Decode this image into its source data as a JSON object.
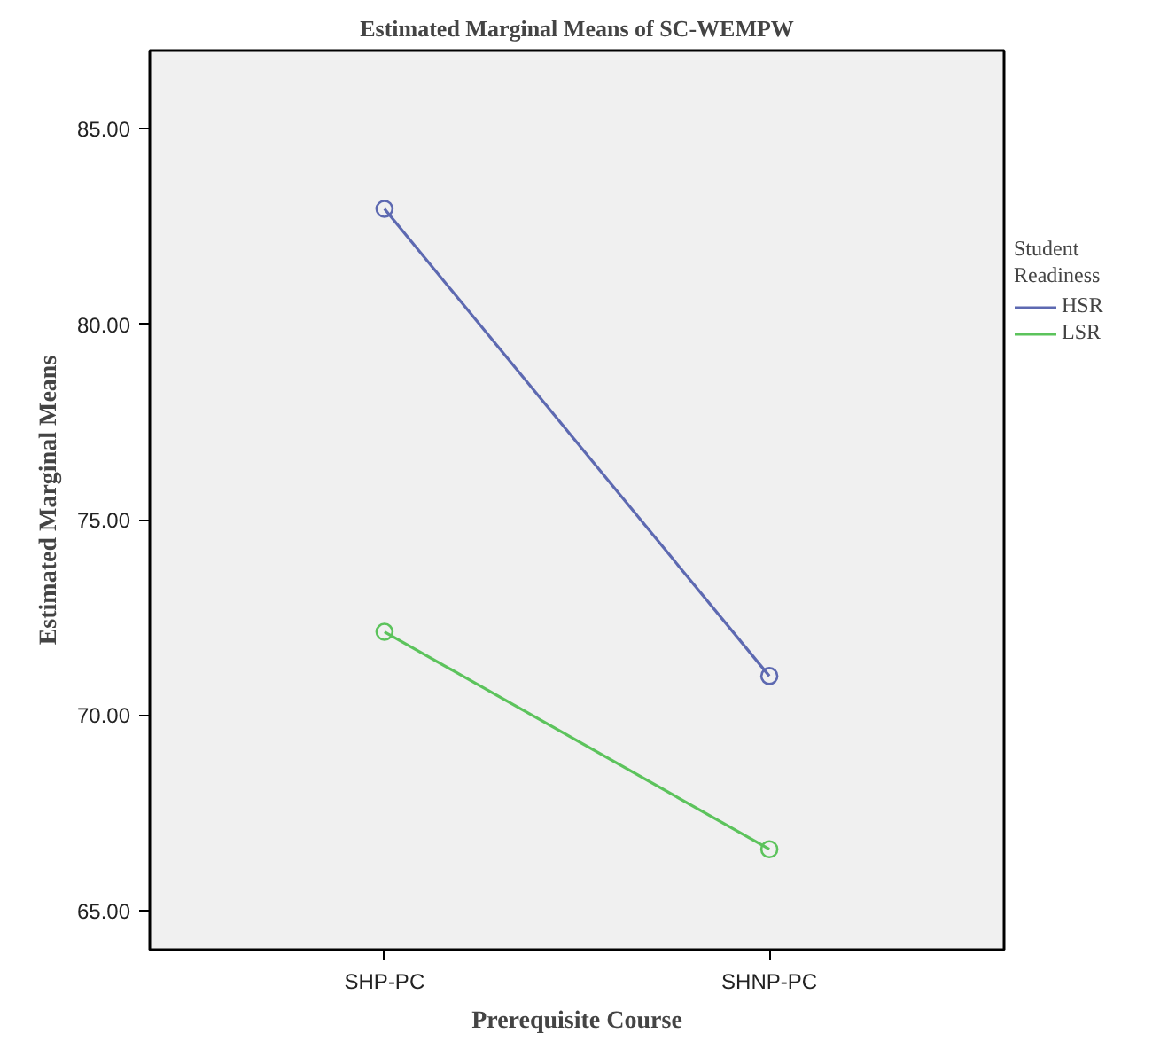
{
  "chart_data": {
    "type": "line",
    "title": "Estimated Marginal Means of SC-WEMPW",
    "xlabel": "Prerequisite Course",
    "ylabel": "Estimated Marginal Means",
    "legend_title": "Student Readiness",
    "categories": [
      "SHP-PC",
      "SHNP-PC"
    ],
    "series": [
      {
        "name": "HSR",
        "color": "#5d69b1",
        "values": [
          82.95,
          71.0
        ]
      },
      {
        "name": "LSR",
        "color": "#5cc35c",
        "values": [
          72.13,
          66.57
        ]
      }
    ],
    "ylim": [
      64,
      87
    ],
    "yticks": [
      {
        "value": 65,
        "label": "65.00"
      },
      {
        "value": 70,
        "label": "70.00"
      },
      {
        "value": 75,
        "label": "75.00"
      },
      {
        "value": 80,
        "label": "80.00"
      },
      {
        "value": 85,
        "label": "85.00"
      }
    ],
    "grid": false,
    "legend": "right",
    "marker": "circle",
    "line_style": "solid"
  }
}
